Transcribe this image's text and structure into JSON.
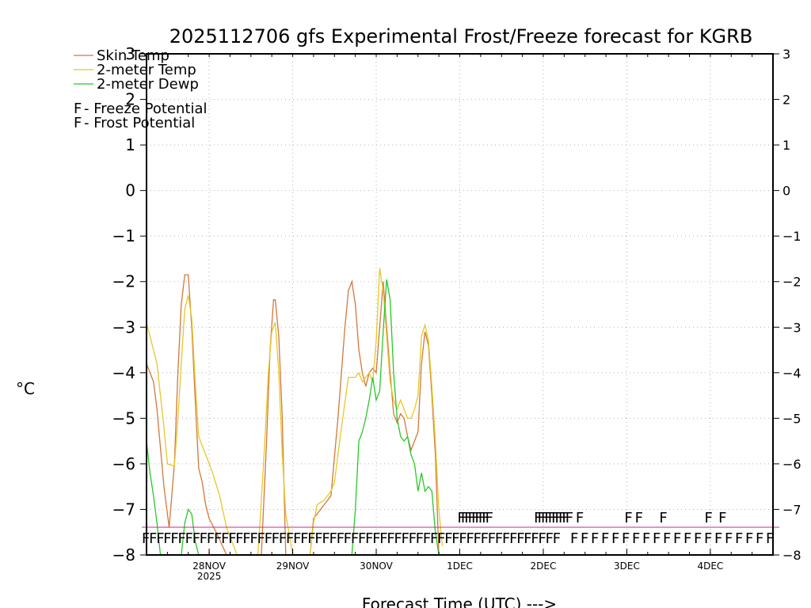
{
  "chart_data": {
    "type": "line",
    "title": "2025112706 gfs Experimental Frost/Freeze forecast for KGRB",
    "ylabel": "°C",
    "xlabel": "Forecast Time (UTC) --->",
    "ylim": [
      -8,
      3
    ],
    "xlim": [
      0,
      180
    ],
    "yticks": [
      -8,
      -7,
      -6,
      -5,
      -4,
      -3,
      -2,
      -1,
      0,
      1,
      2,
      3
    ],
    "ytick_labels": [
      "−8",
      "−7",
      "−6",
      "−5",
      "−4",
      "−3",
      "−2",
      "−1",
      "0",
      "1",
      "2",
      "3"
    ],
    "xticks": [
      {
        "x": 18,
        "label": "28NOV",
        "sub": "2025"
      },
      {
        "x": 42,
        "label": "29NOV",
        "sub": ""
      },
      {
        "x": 66,
        "label": "30NOV",
        "sub": ""
      },
      {
        "x": 90,
        "label": "1DEC",
        "sub": ""
      },
      {
        "x": 114,
        "label": "2DEC",
        "sub": ""
      },
      {
        "x": 138,
        "label": "3DEC",
        "sub": ""
      },
      {
        "x": 162,
        "label": "4DEC",
        "sub": ""
      }
    ],
    "legend": [
      {
        "label": "Skin Temp",
        "color": "#d2783c"
      },
      {
        "label": "2-meter Temp",
        "color": "#e6c828"
      },
      {
        "label": "2-meter Dewp",
        "color": "#28c828"
      }
    ],
    "potential_legend": [
      {
        "mark": "F",
        "label": " - Freeze Potential",
        "color": "#c8288c"
      },
      {
        "mark": "F",
        "label": " - Frost Potential",
        "color": "#4664c8"
      }
    ],
    "series": [
      {
        "name": "Skin Temp",
        "color": "#d2783c",
        "points": [
          [
            0,
            -3.8
          ],
          [
            2,
            -4.2
          ],
          [
            3,
            -4.8
          ],
          [
            5,
            -6.5
          ],
          [
            6.5,
            -7.4
          ],
          [
            8,
            -6.0
          ],
          [
            9,
            -4.0
          ],
          [
            10,
            -2.5
          ],
          [
            11,
            -1.85
          ],
          [
            12,
            -1.85
          ],
          [
            13,
            -3.0
          ],
          [
            14,
            -4.6
          ],
          [
            15,
            -6.1
          ],
          [
            16,
            -6.4
          ],
          [
            17,
            -6.9
          ],
          [
            18,
            -7.2
          ],
          [
            20,
            -7.5
          ],
          [
            23,
            -8.0
          ],
          [
            33,
            -8.0
          ],
          [
            34.5,
            -5.5
          ],
          [
            35.5,
            -3.5
          ],
          [
            36.5,
            -2.4
          ],
          [
            37,
            -2.4
          ],
          [
            38,
            -3.2
          ],
          [
            39,
            -5.0
          ],
          [
            40,
            -8.0
          ],
          [
            47,
            -8.0
          ],
          [
            48,
            -7.2
          ],
          [
            50,
            -7.0
          ],
          [
            53,
            -6.7
          ],
          [
            55,
            -5.0
          ],
          [
            57,
            -3.0
          ],
          [
            58,
            -2.2
          ],
          [
            59,
            -2.0
          ],
          [
            60,
            -2.5
          ],
          [
            61,
            -3.5
          ],
          [
            62,
            -4.0
          ],
          [
            63,
            -4.3
          ],
          [
            64,
            -4.0
          ],
          [
            65,
            -3.9
          ],
          [
            66,
            -4.0
          ],
          [
            67,
            -3.0
          ],
          [
            68,
            -2.0
          ],
          [
            69,
            -3.0
          ],
          [
            70,
            -4.0
          ],
          [
            71,
            -4.9
          ],
          [
            72,
            -5.1
          ],
          [
            73,
            -4.9
          ],
          [
            74,
            -5.0
          ],
          [
            75,
            -5.4
          ],
          [
            76,
            -5.7
          ],
          [
            77,
            -5.5
          ],
          [
            78,
            -5.3
          ],
          [
            79,
            -3.8
          ],
          [
            80,
            -3.1
          ],
          [
            81,
            -3.4
          ],
          [
            82,
            -4.5
          ],
          [
            83,
            -5.8
          ],
          [
            84,
            -8.0
          ]
        ]
      },
      {
        "name": "2-meter Temp",
        "color": "#e6c828",
        "points": [
          [
            0,
            -2.9
          ],
          [
            3,
            -3.8
          ],
          [
            5,
            -5.2
          ],
          [
            6,
            -6.0
          ],
          [
            8,
            -6.05
          ],
          [
            9,
            -5.0
          ],
          [
            10,
            -3.8
          ],
          [
            11,
            -2.6
          ],
          [
            12,
            -2.3
          ],
          [
            13,
            -2.8
          ],
          [
            14,
            -4.2
          ],
          [
            15,
            -5.4
          ],
          [
            17,
            -5.8
          ],
          [
            19,
            -6.2
          ],
          [
            21,
            -6.7
          ],
          [
            23,
            -7.4
          ],
          [
            26,
            -8.0
          ],
          [
            32,
            -8.0
          ],
          [
            33,
            -6.8
          ],
          [
            34,
            -5.5
          ],
          [
            35,
            -4.0
          ],
          [
            36,
            -3.1
          ],
          [
            37,
            -2.9
          ],
          [
            38,
            -4.0
          ],
          [
            39,
            -5.8
          ],
          [
            40,
            -7.1
          ],
          [
            42,
            -8.0
          ],
          [
            47,
            -8.0
          ],
          [
            48,
            -7.3
          ],
          [
            49,
            -6.9
          ],
          [
            51,
            -6.8
          ],
          [
            53,
            -6.6
          ],
          [
            54,
            -6.4
          ],
          [
            56,
            -5.2
          ],
          [
            58,
            -4.1
          ],
          [
            60,
            -4.1
          ],
          [
            61,
            -4.0
          ],
          [
            62,
            -4.2
          ],
          [
            63,
            -4.1
          ],
          [
            64,
            -4.0
          ],
          [
            65,
            -4.2
          ],
          [
            66,
            -3.3
          ],
          [
            67,
            -1.7
          ],
          [
            68,
            -2.2
          ],
          [
            69,
            -3.2
          ],
          [
            70,
            -4.2
          ],
          [
            71,
            -4.6
          ],
          [
            72,
            -4.8
          ],
          [
            73,
            -4.6
          ],
          [
            74,
            -4.8
          ],
          [
            75,
            -5.0
          ],
          [
            76,
            -5.0
          ],
          [
            77,
            -4.8
          ],
          [
            78,
            -4.5
          ],
          [
            79,
            -3.2
          ],
          [
            80,
            -2.95
          ],
          [
            81,
            -3.3
          ],
          [
            82,
            -4.3
          ],
          [
            83,
            -5.5
          ],
          [
            84,
            -7.0
          ],
          [
            85,
            -7.8
          ]
        ]
      },
      {
        "name": "2-meter Dewp",
        "color": "#28c828",
        "points": [
          [
            0,
            -5.5
          ],
          [
            1,
            -6.2
          ],
          [
            2,
            -6.7
          ],
          [
            3,
            -7.3
          ],
          [
            4,
            -8.0
          ],
          [
            10,
            -8.0
          ],
          [
            11,
            -7.3
          ],
          [
            12,
            -7.0
          ],
          [
            13,
            -7.1
          ],
          [
            14,
            -7.7
          ],
          [
            15,
            -8.0
          ],
          [
            59,
            -8.0
          ],
          [
            60,
            -7.0
          ],
          [
            61,
            -5.5
          ],
          [
            62,
            -5.3
          ],
          [
            63,
            -5.0
          ],
          [
            64,
            -4.6
          ],
          [
            65,
            -4.1
          ],
          [
            66,
            -4.6
          ],
          [
            67,
            -4.4
          ],
          [
            68,
            -3.1
          ],
          [
            69,
            -1.95
          ],
          [
            70,
            -2.4
          ],
          [
            71,
            -4.0
          ],
          [
            72,
            -5.0
          ],
          [
            73,
            -5.4
          ],
          [
            74,
            -5.5
          ],
          [
            75,
            -5.4
          ],
          [
            76,
            -5.8
          ],
          [
            77,
            -6.0
          ],
          [
            78,
            -6.6
          ],
          [
            79,
            -6.2
          ],
          [
            80,
            -6.6
          ],
          [
            81,
            -6.5
          ],
          [
            82,
            -6.6
          ],
          [
            83,
            -7.5
          ],
          [
            84,
            -8.0
          ]
        ]
      }
    ],
    "freeze_potential_count": 78,
    "frost_potential_times": [
      90,
      91,
      92,
      93,
      94,
      95,
      96,
      97,
      98,
      112,
      113,
      114,
      115,
      116,
      117,
      118,
      119,
      120,
      121,
      124,
      138,
      141,
      148,
      161,
      165
    ],
    "potential_marker": "F",
    "freeze_level": -7.6,
    "frost_level": -7.15
  }
}
